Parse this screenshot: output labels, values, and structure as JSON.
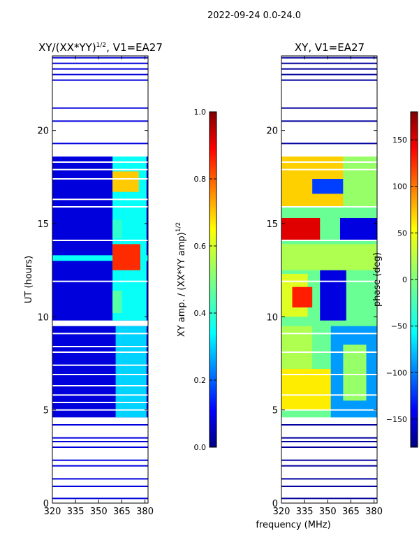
{
  "suptitle": "2022-09-24 0.0-24.0",
  "xlabel_shared": "frequency (MHz)",
  "colors": {
    "jet": [
      "#00007f",
      "#0000ff",
      "#007fff",
      "#00ffff",
      "#7fff7f",
      "#ffff00",
      "#ff7f00",
      "#ff0000",
      "#7f0000"
    ],
    "background": "#ffffff"
  },
  "chart_data": [
    {
      "type": "heatmap",
      "title_prefix": "XY/(XX*YY)",
      "title_exp": "1/2",
      "title_suffix": ", V1=EA27",
      "xlabel": "",
      "ylabel": "UT (hours)",
      "xlim": [
        320,
        382
      ],
      "ylim": [
        0,
        24
      ],
      "xticks": [
        320,
        335,
        350,
        365,
        380
      ],
      "xtick_labels": [
        "320",
        "335",
        "350",
        "365",
        "380"
      ],
      "yticks": [
        0,
        5,
        10,
        15,
        20
      ],
      "ytick_labels": [
        "0",
        "5",
        "10",
        "15",
        "20"
      ],
      "colorbar": {
        "label_prefix": "XY amp. / (XX*YY amp)",
        "label_exp": "1/2",
        "range": [
          0.0,
          1.0
        ],
        "ticks": [
          0.0,
          0.2,
          0.4,
          0.6,
          0.8,
          1.0
        ],
        "tick_labels": [
          "0.0",
          "0.2",
          "0.4",
          "0.6",
          "0.8",
          "1.0"
        ]
      },
      "data_blocks": [
        {
          "t0": 9.8,
          "t1": 18.6,
          "f0": 320,
          "f1": 382,
          "value": 0.08
        },
        {
          "t0": 13.0,
          "t1": 13.3,
          "f0": 320,
          "f1": 382,
          "value": 0.35
        },
        {
          "t0": 9.8,
          "t1": 18.6,
          "f0": 359,
          "f1": 381,
          "value": 0.35
        },
        {
          "t0": 12.5,
          "t1": 13.9,
          "f0": 359,
          "f1": 377,
          "value": 0.85
        },
        {
          "t0": 16.7,
          "t1": 17.8,
          "f0": 359,
          "f1": 376,
          "value": 0.7
        },
        {
          "t0": 10.2,
          "t1": 11.4,
          "f0": 359,
          "f1": 365,
          "value": 0.45
        },
        {
          "t0": 14.2,
          "t1": 15.2,
          "f0": 359,
          "f1": 365,
          "value": 0.4
        },
        {
          "t0": 4.6,
          "t1": 9.5,
          "f0": 320,
          "f1": 382,
          "value": 0.08
        },
        {
          "t0": 4.6,
          "t1": 9.5,
          "f0": 361,
          "f1": 381,
          "value": 0.3
        }
      ],
      "thin_lines": [
        0.25,
        0.9,
        1.3,
        2.0,
        2.3,
        3.0,
        3.3,
        3.5,
        4.2,
        19.3,
        20.5,
        21.2,
        22.7,
        23.0,
        23.3,
        23.6,
        23.9
      ],
      "white_gaps": [
        5.0,
        5.4,
        5.8,
        6.3,
        6.9,
        7.4,
        8.1,
        8.4,
        9.1,
        11.9,
        14.1,
        15.9,
        16.3,
        17.4,
        17.9,
        18.3
      ]
    },
    {
      "type": "heatmap",
      "title_prefix": "XY, V1=EA27",
      "title_exp": "",
      "title_suffix": "",
      "xlabel": "frequency (MHz)",
      "ylabel": "",
      "xlim": [
        320,
        382
      ],
      "ylim": [
        0,
        24
      ],
      "xticks": [
        320,
        335,
        350,
        365,
        380
      ],
      "xtick_labels": [
        "320",
        "335",
        "350",
        "365",
        "380"
      ],
      "yticks": [
        0,
        5,
        10,
        15,
        20
      ],
      "ytick_labels": [
        "0",
        "5",
        "10",
        "15",
        "20"
      ],
      "colorbar": {
        "label": "phase (deg)",
        "range": [
          -180,
          180
        ],
        "ticks": [
          -150,
          -100,
          -50,
          0,
          50,
          100,
          150
        ],
        "tick_labels": [
          "−150",
          "−100",
          "−50",
          "0",
          "50",
          "100",
          "150"
        ]
      },
      "data_blocks": [
        {
          "t0": 4.6,
          "t1": 18.6,
          "f0": 320,
          "f1": 382,
          "value": -10
        },
        {
          "t0": 9.8,
          "t1": 12.5,
          "f0": 345,
          "f1": 362,
          "value": -150
        },
        {
          "t0": 10.0,
          "t1": 12.3,
          "f0": 320,
          "f1": 337,
          "value": 40
        },
        {
          "t0": 10.5,
          "t1": 11.6,
          "f0": 327,
          "f1": 340,
          "value": 130
        },
        {
          "t0": 12.5,
          "t1": 13.9,
          "f0": 320,
          "f1": 382,
          "value": 20
        },
        {
          "t0": 14.1,
          "t1": 15.3,
          "f0": 320,
          "f1": 345,
          "value": 150
        },
        {
          "t0": 14.1,
          "t1": 15.3,
          "f0": 358,
          "f1": 382,
          "value": -150
        },
        {
          "t0": 15.9,
          "t1": 18.6,
          "f0": 320,
          "f1": 360,
          "value": 70
        },
        {
          "t0": 16.6,
          "t1": 17.4,
          "f0": 340,
          "f1": 360,
          "value": -120
        },
        {
          "t0": 15.9,
          "t1": 18.6,
          "f0": 360,
          "f1": 382,
          "value": 10
        },
        {
          "t0": 5.0,
          "t1": 7.2,
          "f0": 320,
          "f1": 352,
          "value": 60
        },
        {
          "t0": 7.2,
          "t1": 9.5,
          "f0": 320,
          "f1": 340,
          "value": 20
        },
        {
          "t0": 4.6,
          "t1": 9.5,
          "f0": 352,
          "f1": 382,
          "value": -90
        },
        {
          "t0": 5.5,
          "t1": 8.5,
          "f0": 360,
          "f1": 375,
          "value": 10
        }
      ],
      "thin_lines": [
        0.25,
        0.9,
        1.3,
        2.0,
        2.3,
        3.0,
        3.3,
        3.5,
        4.2,
        19.3,
        20.5,
        21.2,
        22.7,
        23.0,
        23.3,
        23.6,
        23.9
      ],
      "white_gaps": [
        5.0,
        5.8,
        6.9,
        8.1,
        9.1,
        11.9,
        14.1,
        15.9,
        17.9,
        18.3
      ]
    }
  ]
}
